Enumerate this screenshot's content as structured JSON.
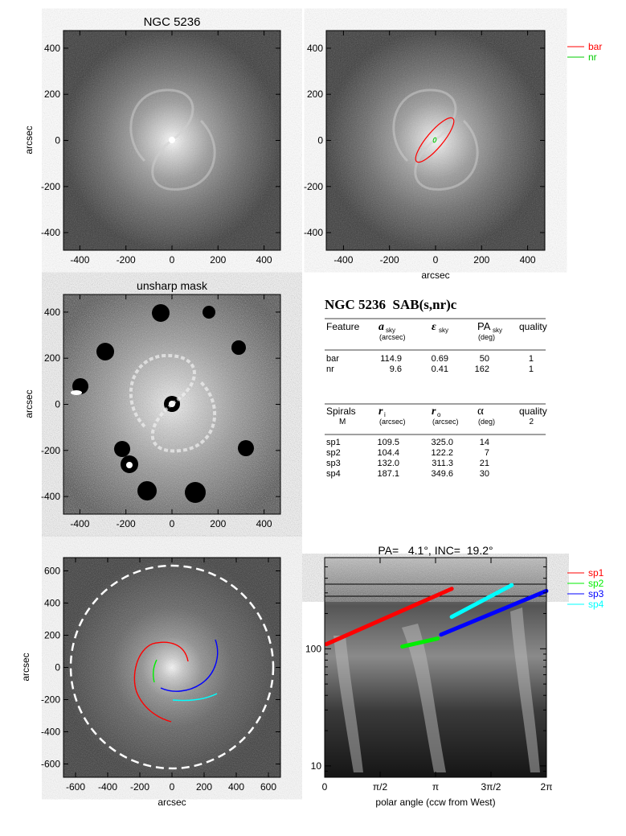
{
  "panel1": {
    "title": "NGC 5236",
    "ylabel": "arcsec",
    "xticks": [
      "-400",
      "-200",
      "0",
      "200",
      "400"
    ],
    "yticks": [
      "400",
      "200",
      "0",
      "-200",
      "-400"
    ]
  },
  "panel2": {
    "xlabel": "arcsec",
    "xticks": [
      "-400",
      "-200",
      "0",
      "200",
      "400"
    ],
    "yticks": [
      "400",
      "200",
      "0",
      "-200",
      "-400"
    ],
    "legend": [
      {
        "name": "bar",
        "color": "#ff0000"
      },
      {
        "name": "nr",
        "color": "#00cc00"
      }
    ],
    "bar_ellipse": {
      "a": 114.9,
      "ell": 0.69,
      "pa": 50
    },
    "nr_ellipse": {
      "a": 9.6,
      "ell": 0.41,
      "pa": 162
    }
  },
  "panel3": {
    "title": "unsharp mask",
    "ylabel": "arcsec",
    "xticks": [
      "-400",
      "-200",
      "0",
      "200",
      "400"
    ],
    "yticks": [
      "400",
      "200",
      "0",
      "-200",
      "-400"
    ]
  },
  "table": {
    "title": "NGC 5236  SAB(s,nr)c",
    "header1": {
      "feature": "Feature",
      "a": "a",
      "a_sub": "sky",
      "a_unit": "(arcsec)",
      "e": "ε",
      "e_sub": "sky",
      "pa": "PA",
      "pa_sub": "sky",
      "pa_unit": "(deg)",
      "quality": "quality"
    },
    "rows1": [
      {
        "feature": "bar",
        "a": "114.9",
        "e": "0.69",
        "pa": "50",
        "q": "1"
      },
      {
        "feature": "nr",
        "a": "9.6",
        "e": "0.41",
        "pa": "162",
        "q": "1"
      }
    ],
    "header2": {
      "spirals": "Spirals",
      "m_label": "M",
      "ri": "r",
      "ri_sub": "i",
      "ri_unit": "(arcsec)",
      "ro": "r",
      "ro_sub": "o",
      "ro_unit": "(arcsec)",
      "alpha": "α",
      "alpha_unit": "(deg)",
      "quality": "quality",
      "quality_val": "2"
    },
    "rows2": [
      {
        "name": "sp1",
        "ri": "109.5",
        "ro": "325.0",
        "alpha": "14"
      },
      {
        "name": "sp2",
        "ri": "104.4",
        "ro": "122.2",
        "alpha": "7"
      },
      {
        "name": "sp3",
        "ri": "132.0",
        "ro": "311.3",
        "alpha": "21"
      },
      {
        "name": "sp4",
        "ri": "187.1",
        "ro": "349.6",
        "alpha": "30"
      }
    ]
  },
  "panel5": {
    "xlabel": "arcsec",
    "ylabel": "arcsec",
    "xticks": [
      "-600",
      "-400",
      "-200",
      "0",
      "200",
      "400",
      "600"
    ],
    "yticks": [
      "600",
      "400",
      "200",
      "0",
      "-200",
      "-400",
      "-600"
    ]
  },
  "panel6": {
    "title": "PA=   4.1°, INC=  19.2°",
    "xlabel": "polar angle (ccw from West)",
    "xticks": [
      "0",
      "π/2",
      "π",
      "3π/2",
      "2π"
    ],
    "yticks": [
      "100",
      "10"
    ],
    "legend": [
      {
        "name": "sp1",
        "color": "#ff0000"
      },
      {
        "name": "sp2",
        "color": "#00ee00"
      },
      {
        "name": "sp3",
        "color": "#0000ff"
      },
      {
        "name": "sp4",
        "color": "#00ffff"
      }
    ]
  },
  "chart_data": {
    "type": "line",
    "xlabel": "polar angle (ccw from West)",
    "xlim": [
      0,
      6.2832
    ],
    "ylim": [
      8,
      600
    ],
    "y_scale": "log",
    "series": [
      {
        "name": "sp1",
        "x": [
          0.05,
          3.6
        ],
        "y": [
          109.5,
          325.0
        ]
      },
      {
        "name": "sp2",
        "x": [
          2.2,
          3.2
        ],
        "y": [
          104.4,
          122.2
        ]
      },
      {
        "name": "sp3",
        "x": [
          3.3,
          6.28
        ],
        "y": [
          132.0,
          311.3
        ]
      },
      {
        "name": "sp4",
        "x": [
          3.6,
          5.3
        ],
        "y": [
          187.1,
          349.6
        ]
      }
    ]
  }
}
